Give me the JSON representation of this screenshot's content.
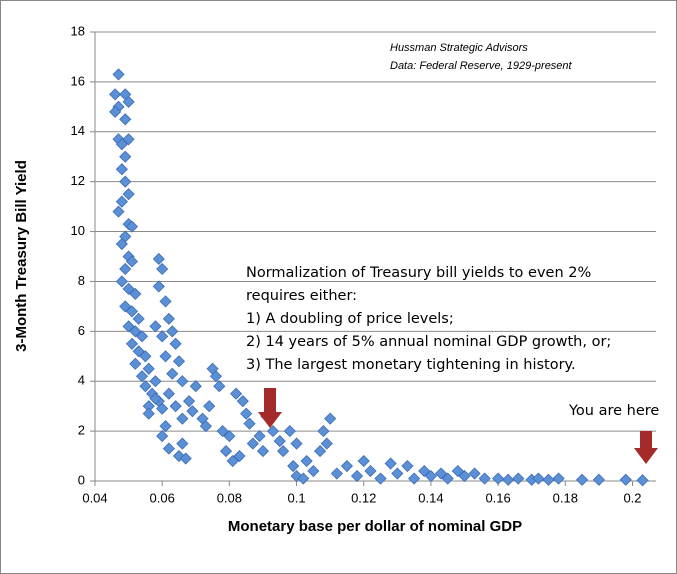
{
  "chart_data": {
    "type": "scatter",
    "x_label": "Monetary base per dollar of nominal GDP",
    "y_label": "3-Month Treasury Bill Yield",
    "source_lines": [
      "Hussman Strategic Advisors",
      "Data: Federal Reserve, 1929-present"
    ],
    "annotation_lines": [
      "Normalization of Treasury bill yields to even 2%",
      "requires either:",
      "1) A doubling of price levels;",
      "2) 14 years of 5% annual nominal GDP growth, or;",
      "3) The largest monetary tightening in history."
    ],
    "marker_note": "You are here",
    "color": "#5b8fd6",
    "grid": true,
    "xlim": [
      0.04,
      0.207
    ],
    "xticks": [
      0.04,
      0.06,
      0.08,
      0.1,
      0.12,
      0.14,
      0.16,
      0.18,
      0.2
    ],
    "ylim": [
      0,
      18
    ],
    "yticks": [
      0,
      2,
      4,
      6,
      8,
      10,
      12,
      14,
      16,
      18
    ],
    "x": [
      0.047,
      0.046,
      0.047,
      0.046,
      0.049,
      0.05,
      0.049,
      0.047,
      0.048,
      0.05,
      0.049,
      0.048,
      0.049,
      0.05,
      0.048,
      0.047,
      0.05,
      0.049,
      0.051,
      0.048,
      0.05,
      0.049,
      0.051,
      0.048,
      0.05,
      0.052,
      0.049,
      0.051,
      0.053,
      0.05,
      0.052,
      0.054,
      0.051,
      0.053,
      0.055,
      0.052,
      0.056,
      0.054,
      0.058,
      0.055,
      0.057,
      0.059,
      0.056,
      0.06,
      0.058,
      0.06,
      0.059,
      0.06,
      0.059,
      0.061,
      0.062,
      0.063,
      0.064,
      0.061,
      0.065,
      0.063,
      0.066,
      0.062,
      0.064,
      0.061,
      0.06,
      0.062,
      0.065,
      0.066,
      0.067,
      0.066,
      0.068,
      0.07,
      0.069,
      0.072,
      0.074,
      0.075,
      0.076,
      0.077,
      0.073,
      0.078,
      0.08,
      0.079,
      0.081,
      0.083,
      0.082,
      0.084,
      0.085,
      0.086,
      0.087,
      0.089,
      0.09,
      0.091,
      0.093,
      0.095,
      0.096,
      0.098,
      0.1,
      0.099,
      0.1,
      0.102,
      0.103,
      0.105,
      0.107,
      0.108,
      0.11,
      0.109,
      0.112,
      0.115,
      0.118,
      0.12,
      0.122,
      0.125,
      0.128,
      0.13,
      0.133,
      0.135,
      0.138,
      0.14,
      0.143,
      0.145,
      0.148,
      0.15,
      0.153,
      0.156,
      0.16,
      0.163,
      0.166,
      0.17,
      0.172,
      0.175,
      0.178,
      0.185,
      0.19,
      0.198,
      0.203,
      0.056,
      0.058
    ],
    "values": [
      16.3,
      15.5,
      15,
      14.8,
      15.5,
      15.2,
      14.5,
      13.7,
      13.5,
      13.7,
      13,
      12.5,
      12,
      11.5,
      11.2,
      10.8,
      10.3,
      9.8,
      10.2,
      9.5,
      9,
      8.5,
      8.8,
      8,
      7.7,
      7.5,
      7,
      6.8,
      6.5,
      6.2,
      6,
      5.8,
      5.5,
      5.2,
      5,
      4.7,
      4.5,
      4.2,
      4,
      3.8,
      3.5,
      3.2,
      3,
      2.9,
      6.2,
      5.8,
      8.9,
      8.5,
      7.8,
      7.2,
      6.5,
      6,
      5.5,
      5,
      4.8,
      4.3,
      4,
      3.5,
      3,
      2.2,
      1.8,
      1.3,
      1,
      1.5,
      0.9,
      2.5,
      3.2,
      3.8,
      2.8,
      2.5,
      3,
      4.5,
      4.2,
      3.8,
      2.2,
      2,
      1.8,
      1.2,
      0.8,
      1,
      3.5,
      3.2,
      2.7,
      2.3,
      1.5,
      1.8,
      1.2,
      2.6,
      2,
      1.6,
      1.2,
      2,
      1.5,
      0.6,
      0.2,
      0.1,
      0.8,
      0.4,
      1.2,
      2,
      2.5,
      1.5,
      0.3,
      0.6,
      0.2,
      0.8,
      0.4,
      0.1,
      0.7,
      0.3,
      0.6,
      0.1,
      0.4,
      0.2,
      0.3,
      0.1,
      0.4,
      0.2,
      0.3,
      0.1,
      0.1,
      0.05,
      0.1,
      0.05,
      0.1,
      0.05,
      0.1,
      0.05,
      0.05,
      0.05,
      0.03,
      2.7,
      3.3
    ]
  }
}
